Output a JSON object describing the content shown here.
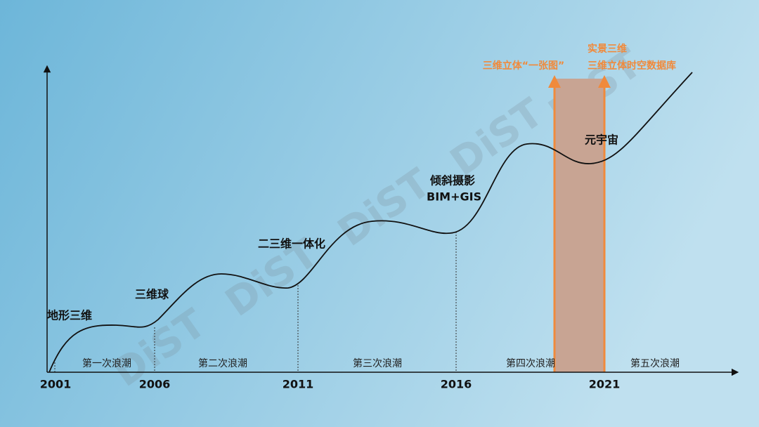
{
  "years": [
    "2001",
    "2006",
    "2011",
    "2016",
    "2021"
  ],
  "waves": [
    "第一次浪潮",
    "第二次浪潮",
    "第三次浪潮",
    "第四次浪潮",
    "第五次浪潮"
  ],
  "milestones": [
    "地形三维",
    "三维球",
    "二三维一体化",
    "倾斜摄影",
    "BIM+GIS",
    "元宇宙"
  ],
  "highlights": {
    "left": "三维立体“一张图”",
    "right": [
      "实景三维",
      "三维立体时空数据库"
    ]
  },
  "watermark": "DiST"
}
